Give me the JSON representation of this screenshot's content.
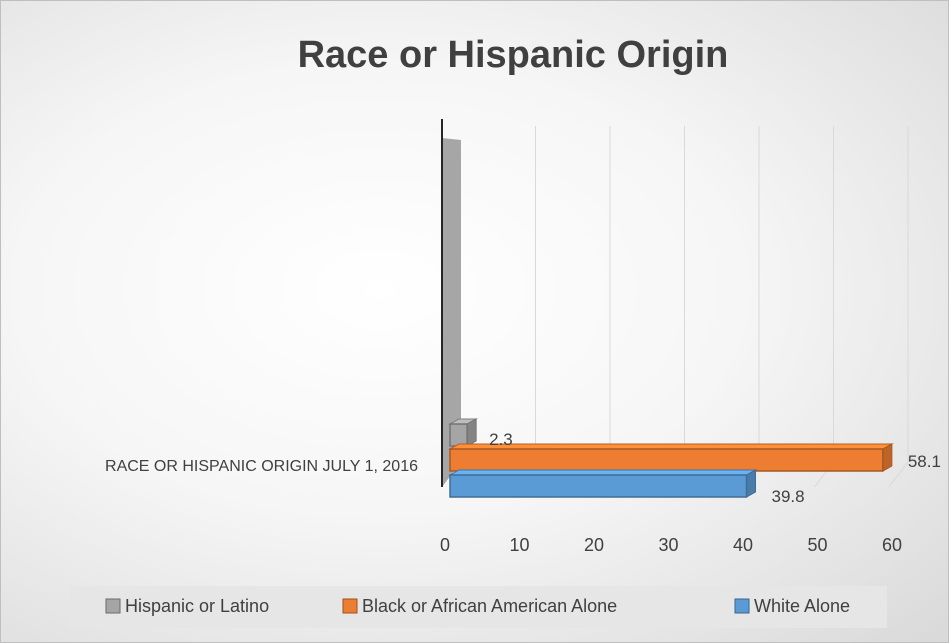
{
  "chart_data": {
    "type": "bar",
    "orientation": "horizontal",
    "style": "3d",
    "title": "Race or Hispanic Origin",
    "categories": [
      "RACE OR HISPANIC ORIGIN  JULY 1, 2016"
    ],
    "series": [
      {
        "name": "Hispanic or Latino",
        "values": [
          2.3
        ],
        "color": "#a5a5a5"
      },
      {
        "name": "Black or African American Alone",
        "values": [
          58.1
        ],
        "color": "#ed7d31"
      },
      {
        "name": "White Alone",
        "values": [
          39.8
        ],
        "color": "#5b9bd5"
      }
    ],
    "xlim": [
      0,
      60
    ],
    "xticks": [
      "0",
      "10",
      "20",
      "30",
      "40",
      "50",
      "60"
    ],
    "data_labels": [
      "2.3",
      "58.1",
      "39.8"
    ],
    "grid": true,
    "legend_position": "bottom"
  }
}
